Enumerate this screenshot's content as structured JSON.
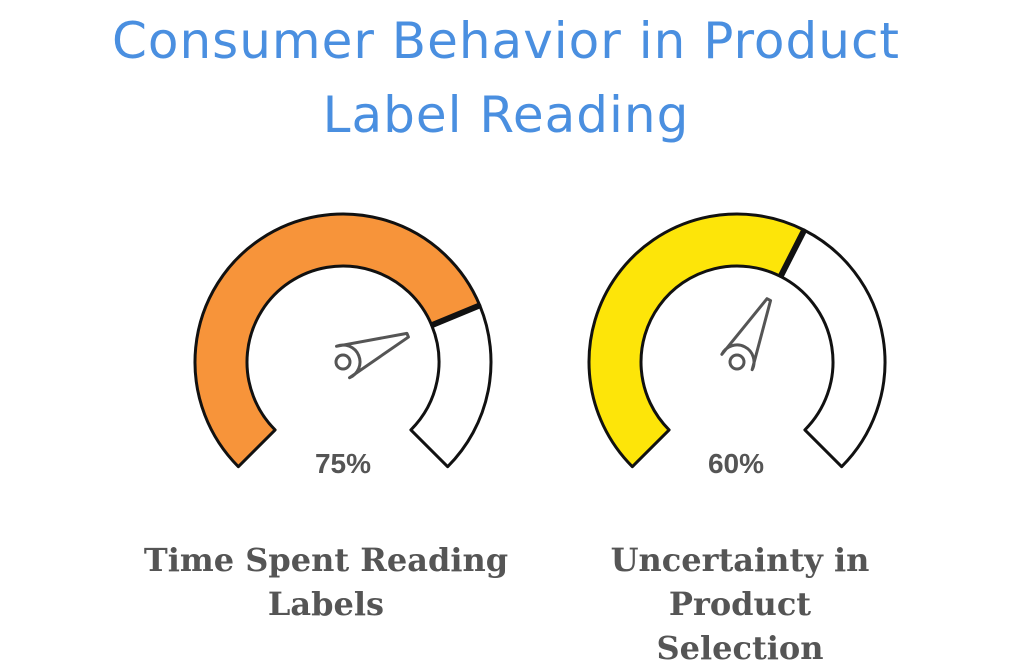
{
  "title": {
    "line1": "Consumer Behavior in Product",
    "line2": "Label Reading"
  },
  "chart_data": [
    {
      "type": "gauge",
      "value": 75,
      "value_label": "75%",
      "label_line1": "Time Spent Reading",
      "label_line2": "Labels",
      "range": [
        0,
        100
      ],
      "fill_color": "#f7943a",
      "empty_color": "#ffffff"
    },
    {
      "type": "gauge",
      "value": 60,
      "value_label": "60%",
      "label_line1": "Uncertainty in Product",
      "label_line2": "Selection",
      "range": [
        0,
        100
      ],
      "fill_color": "#fde509",
      "empty_color": "#ffffff"
    }
  ]
}
